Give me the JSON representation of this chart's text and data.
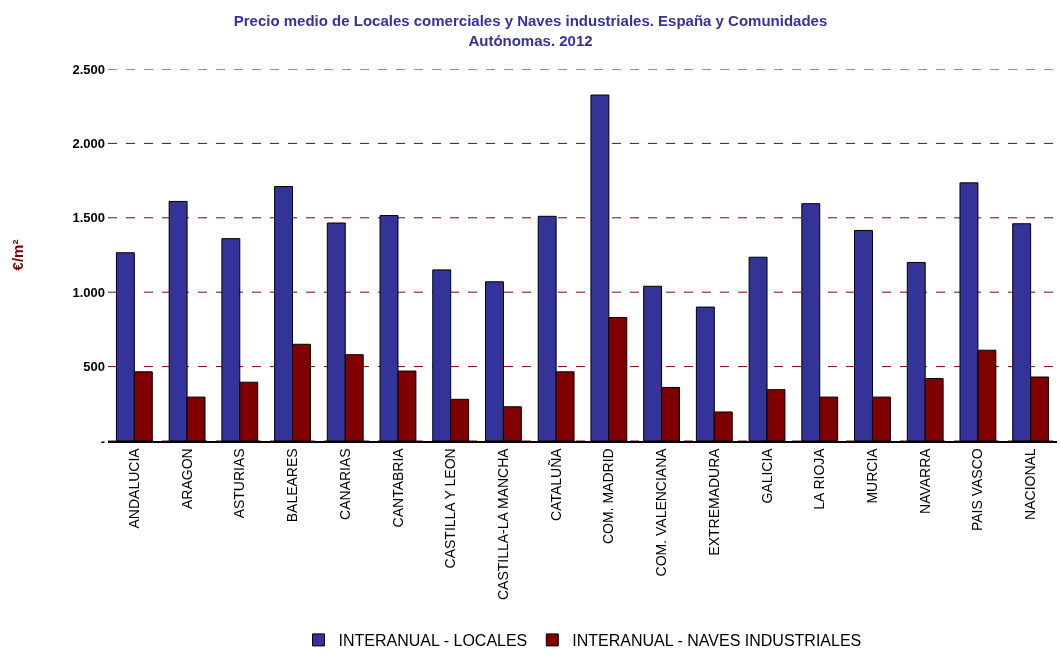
{
  "chart_data": {
    "type": "bar",
    "title": "Precio medio de Locales comerciales y Naves industriales. España y Comunidades\nAutónomas. 2012",
    "ylabel": "€/m²",
    "categories": [
      "ANDALUCIA",
      "ARAGON",
      "ASTURIAS",
      "BALEARES",
      "CANARIAS",
      "CANTABRIA",
      "CASTILLA Y LEON",
      "CASTILLA-LA MANCHA",
      "CATALUÑA",
      "COM. MADRID",
      "COM. VALENCIANA",
      "EXTREMADURA",
      "GALICIA",
      "LA RIOJA",
      "MURCIA",
      "NAVARRA",
      "PAIS VASCO",
      "NACIONAL"
    ],
    "series": [
      {
        "name": "INTERANUAL - LOCALES",
        "color": "#333399",
        "values": [
          1265,
          1610,
          1360,
          1710,
          1465,
          1515,
          1150,
          1070,
          1510,
          2325,
          1040,
          900,
          1235,
          1595,
          1415,
          1200,
          1735,
          1460
        ]
      },
      {
        "name": "INTERANUAL - NAVES INDUSTRIALES",
        "color": "#800000",
        "values": [
          465,
          295,
          395,
          650,
          580,
          470,
          280,
          230,
          465,
          830,
          360,
          195,
          345,
          295,
          295,
          420,
          610,
          430
        ]
      }
    ],
    "ylim": [
      0,
      2500
    ],
    "yticks": [
      {
        "value": 0,
        "label": "-"
      },
      500,
      {
        "value": 1000,
        "label": "1.000"
      },
      {
        "value": 1500,
        "label": "1.500"
      },
      {
        "value": 2000,
        "label": "2.000"
      },
      {
        "value": 2500,
        "label": "2.500"
      }
    ],
    "grid": "y",
    "legend": "bottom"
  }
}
